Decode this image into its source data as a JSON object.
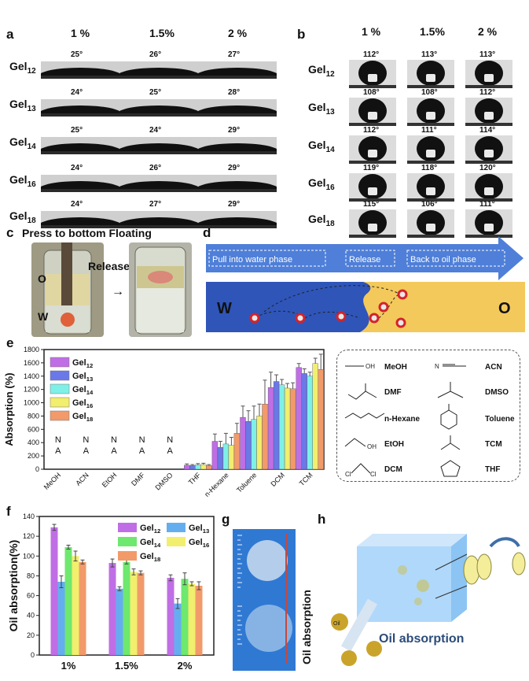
{
  "panel_labels": {
    "a": "a",
    "b": "b",
    "c": "c",
    "d": "d",
    "e": "e",
    "f": "f",
    "g": "g",
    "h": "h"
  },
  "conc_headers": [
    "1 %",
    "1.5%",
    "2 %"
  ],
  "gel_rows": [
    {
      "base": "Gel",
      "sub": "12"
    },
    {
      "base": "Gel",
      "sub": "13"
    },
    {
      "base": "Gel",
      "sub": "14"
    },
    {
      "base": "Gel",
      "sub": "16"
    },
    {
      "base": "Gel",
      "sub": "18"
    }
  ],
  "panel_a": {
    "angles": [
      [
        "25°",
        "26°",
        "27°"
      ],
      [
        "24°",
        "25°",
        "28°"
      ],
      [
        "25°",
        "24°",
        "29°"
      ],
      [
        "24°",
        "26°",
        "29°"
      ],
      [
        "24°",
        "27°",
        "29°"
      ]
    ]
  },
  "panel_b": {
    "angles": [
      [
        "112°",
        "113°",
        "113°"
      ],
      [
        "108°",
        "108°",
        "112°"
      ],
      [
        "112°",
        "111°",
        "114°"
      ],
      [
        "119°",
        "118°",
        "120°"
      ],
      [
        "115°",
        "106°",
        "111°"
      ]
    ]
  },
  "panel_c": {
    "title": "Press to bottom Floating",
    "release": "Release",
    "o": "O",
    "w": "W"
  },
  "panel_d": {
    "steps": [
      "Pull into water phase",
      "Release",
      "Back to oil phase"
    ],
    "w": "W",
    "o": "O",
    "colors": {
      "water": "#2f55b8",
      "oil": "#f3c95b",
      "arrow": "#4f7fd8"
    }
  },
  "panel_e": {
    "chart_data": {
      "type": "bar",
      "ylabel": "Absorption (%)",
      "ylim": [
        0,
        1800
      ],
      "yticks": [
        0,
        200,
        400,
        600,
        800,
        1000,
        1200,
        1400,
        1600,
        1800
      ],
      "categories": [
        "MeOH",
        "ACN",
        "EtOH",
        "DMF",
        "DMSO",
        "THF",
        "n-Hexane",
        "Toluene",
        "DCM",
        "TCM"
      ],
      "na_label": "N\nA",
      "series": [
        {
          "name": "Gel",
          "sub": "12",
          "color": "#c06ee6",
          "values": [
            0,
            0,
            0,
            0,
            0,
            60,
            420,
            780,
            1230,
            1530
          ],
          "errors": [
            0,
            0,
            0,
            0,
            0,
            20,
            110,
            170,
            230,
            60
          ]
        },
        {
          "name": "Gel",
          "sub": "13",
          "color": "#6b78e8",
          "values": [
            0,
            0,
            0,
            0,
            0,
            55,
            330,
            720,
            1320,
            1440
          ],
          "errors": [
            0,
            0,
            0,
            0,
            0,
            15,
            90,
            160,
            100,
            70
          ]
        },
        {
          "name": "Gel",
          "sub": "14",
          "color": "#7ff0e8",
          "values": [
            0,
            0,
            0,
            0,
            0,
            65,
            380,
            750,
            1270,
            1400
          ],
          "errors": [
            0,
            0,
            0,
            0,
            0,
            20,
            160,
            200,
            80,
            60
          ]
        },
        {
          "name": "Gel",
          "sub": "16",
          "color": "#f2ee6e",
          "values": [
            0,
            0,
            0,
            0,
            0,
            70,
            360,
            800,
            1220,
            1590
          ],
          "errors": [
            0,
            0,
            0,
            0,
            0,
            20,
            120,
            180,
            70,
            80
          ]
        },
        {
          "name": "Gel",
          "sub": "18",
          "color": "#f29a6a",
          "values": [
            0,
            0,
            0,
            0,
            0,
            55,
            540,
            980,
            1210,
            1500
          ],
          "errors": [
            0,
            0,
            0,
            0,
            0,
            15,
            150,
            360,
            90,
            230
          ]
        }
      ]
    },
    "na_top": "N",
    "na_bottom": "A"
  },
  "solvents": [
    {
      "name": "MeOH",
      "kind": "meoh"
    },
    {
      "name": "ACN",
      "kind": "acn"
    },
    {
      "name": "DMF",
      "kind": "dmf"
    },
    {
      "name": "DMSO",
      "kind": "dmso"
    },
    {
      "name": "n-Hexane",
      "kind": "hexane"
    },
    {
      "name": "Toluene",
      "kind": "toluene"
    },
    {
      "name": "EtOH",
      "kind": "etoh"
    },
    {
      "name": "TCM",
      "kind": "tcm"
    },
    {
      "name": "DCM",
      "kind": "dcm"
    },
    {
      "name": "THF",
      "kind": "thf"
    }
  ],
  "panel_f": {
    "chart_data": {
      "type": "bar",
      "ylabel": "Oil absorption(%)",
      "ylim": [
        0,
        140
      ],
      "yticks": [
        0,
        20,
        40,
        60,
        80,
        100,
        120,
        140
      ],
      "categories": [
        "1%",
        "1.5%",
        "2%"
      ],
      "series": [
        {
          "name": "Gel",
          "sub": "12",
          "color": "#c06ee6",
          "values": [
            129,
            93,
            78
          ],
          "errors": [
            3,
            4,
            3
          ]
        },
        {
          "name": "Gel",
          "sub": "13",
          "color": "#64aef0",
          "values": [
            74,
            67,
            52
          ],
          "errors": [
            6,
            2,
            5
          ]
        },
        {
          "name": "Gel",
          "sub": "14",
          "color": "#6ee86e",
          "values": [
            109,
            94,
            77
          ],
          "errors": [
            2,
            2,
            6
          ]
        },
        {
          "name": "Gel",
          "sub": "16",
          "color": "#f2ee6e",
          "values": [
            100,
            84,
            72
          ],
          "errors": [
            5,
            3,
            2
          ]
        },
        {
          "name": "Gel",
          "sub": "18",
          "color": "#f29a6a",
          "values": [
            94,
            83,
            70
          ],
          "errors": [
            2,
            2,
            4
          ]
        }
      ]
    }
  },
  "panel_g": {
    "label": "Oil absorption"
  },
  "panel_h": {
    "caption": "Oil absorption",
    "oil_text": "Oil"
  }
}
